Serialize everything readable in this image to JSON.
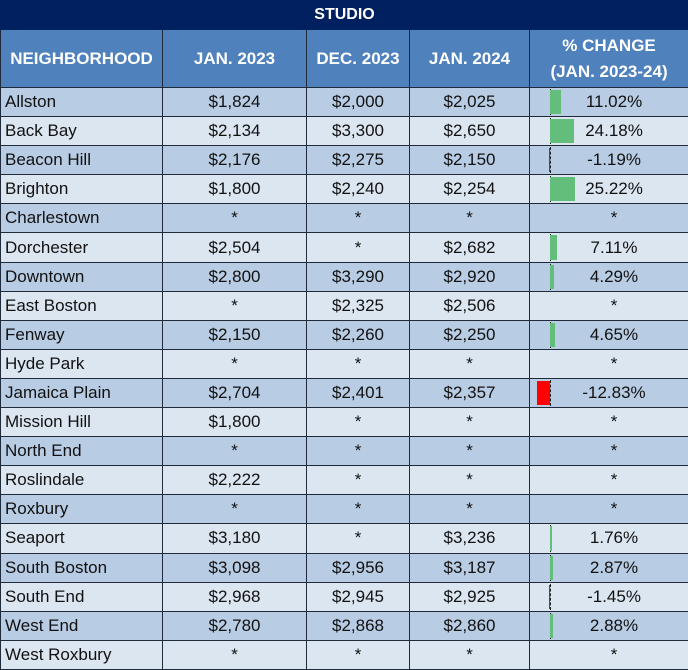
{
  "title": "STUDIO",
  "headers": [
    "NEIGHBORHOOD",
    "JAN. 2023",
    "DEC. 2023",
    "JAN. 2024",
    "% CHANGE",
    "(JAN. 2023-24)"
  ],
  "colors": {
    "title_bg": "#002060",
    "header_bg": "#4f81bd",
    "row_odd": "#b8cce4",
    "row_even": "#dce6f1",
    "bar_positive": "#63be7b",
    "bar_negative": "#ff0000"
  },
  "rows": [
    {
      "name": "Allston",
      "jan23": "$1,824",
      "dec23": "$2,000",
      "jan24": "$2,025",
      "pct": "11.02%",
      "change": 11.02
    },
    {
      "name": "Back Bay",
      "jan23": "$2,134",
      "dec23": "$3,300",
      "jan24": "$2,650",
      "pct": "24.18%",
      "change": 24.18
    },
    {
      "name": "Beacon Hill",
      "jan23": "$2,176",
      "dec23": "$2,275",
      "jan24": "$2,150",
      "pct": "-1.19%",
      "change": -1.19
    },
    {
      "name": "Brighton",
      "jan23": "$1,800",
      "dec23": "$2,240",
      "jan24": "$2,254",
      "pct": "25.22%",
      "change": 25.22
    },
    {
      "name": "Charlestown",
      "jan23": "*",
      "dec23": "*",
      "jan24": "*",
      "pct": "*",
      "change": null
    },
    {
      "name": "Dorchester",
      "jan23": "$2,504",
      "dec23": "*",
      "jan24": "$2,682",
      "pct": "7.11%",
      "change": 7.11
    },
    {
      "name": "Downtown",
      "jan23": "$2,800",
      "dec23": "$3,290",
      "jan24": "$2,920",
      "pct": "4.29%",
      "change": 4.29
    },
    {
      "name": "East Boston",
      "jan23": "*",
      "dec23": "$2,325",
      "jan24": "$2,506",
      "pct": "*",
      "change": null
    },
    {
      "name": "Fenway",
      "jan23": "$2,150",
      "dec23": "$2,260",
      "jan24": "$2,250",
      "pct": "4.65%",
      "change": 4.65
    },
    {
      "name": "Hyde Park",
      "jan23": "*",
      "dec23": "*",
      "jan24": "*",
      "pct": "*",
      "change": null
    },
    {
      "name": "Jamaica Plain",
      "jan23": "$2,704",
      "dec23": "$2,401",
      "jan24": "$2,357",
      "pct": "-12.83%",
      "change": -12.83
    },
    {
      "name": "Mission Hill",
      "jan23": "$1,800",
      "dec23": "*",
      "jan24": "*",
      "pct": "*",
      "change": null
    },
    {
      "name": "North End",
      "jan23": "*",
      "dec23": "*",
      "jan24": "*",
      "pct": "*",
      "change": null
    },
    {
      "name": "Roslindale",
      "jan23": "$2,222",
      "dec23": "*",
      "jan24": "*",
      "pct": "*",
      "change": null
    },
    {
      "name": "Roxbury",
      "jan23": "*",
      "dec23": "*",
      "jan24": "*",
      "pct": "*",
      "change": null
    },
    {
      "name": "Seaport",
      "jan23": "$3,180",
      "dec23": "*",
      "jan24": "$3,236",
      "pct": "1.76%",
      "change": 1.76
    },
    {
      "name": "South Boston",
      "jan23": "$3,098",
      "dec23": "$2,956",
      "jan24": "$3,187",
      "pct": "2.87%",
      "change": 2.87
    },
    {
      "name": "South End",
      "jan23": "$2,968",
      "dec23": "$2,945",
      "jan24": "$2,925",
      "pct": "-1.45%",
      "change": -1.45
    },
    {
      "name": "West End",
      "jan23": "$2,780",
      "dec23": "$2,868",
      "jan24": "$2,860",
      "pct": "2.88%",
      "change": 2.88
    },
    {
      "name": "West Roxbury",
      "jan23": "*",
      "dec23": "*",
      "jan24": "*",
      "pct": "*",
      "change": null
    }
  ]
}
